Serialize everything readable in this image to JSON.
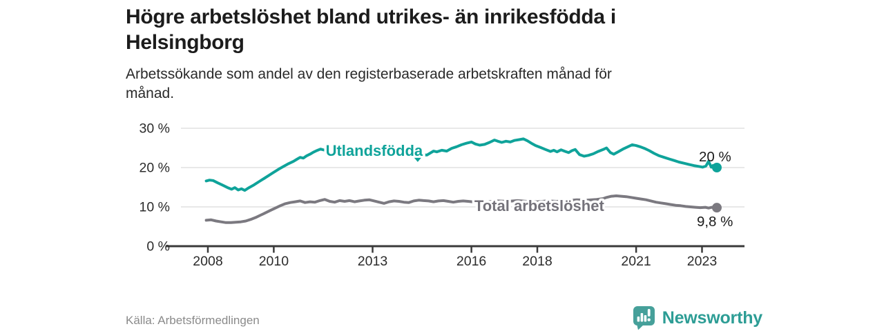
{
  "header": {
    "title_lines": [
      "Högre arbetslöshet bland utrikes- än inrikesfödda i",
      "Helsingborg"
    ],
    "subtitle_lines": [
      "Arbetssökande som andel av den registerbaserade arbetskraften månad för",
      "månad."
    ]
  },
  "footer": {
    "source": "Källa: Arbetsförmedlingen",
    "brand": "Newsworthy",
    "brand_color": "#2d9d95",
    "brand_icon": "speech-bubble-bar-chart-icon"
  },
  "chart_data": {
    "type": "line",
    "title": "Högre arbetslöshet bland utrikes- än inrikesfödda i Helsingborg",
    "subtitle": "Arbetssökande som andel av den registerbaserade arbetskraften månad för månad.",
    "source": "Källa: Arbetsförmedlingen",
    "unit": "%",
    "grid": true,
    "legend": "inline-labels",
    "xlim": [
      2007.8,
      2024.3
    ],
    "ylim": [
      0,
      32
    ],
    "x_ticks": [
      {
        "v": 2008,
        "label": "2008"
      },
      {
        "v": 2010,
        "label": "2010"
      },
      {
        "v": 2013,
        "label": "2013"
      },
      {
        "v": 2016,
        "label": "2016"
      },
      {
        "v": 2018,
        "label": "2018"
      },
      {
        "v": 2021,
        "label": "2021"
      },
      {
        "v": 2023,
        "label": "2023"
      }
    ],
    "y_ticks": [
      {
        "v": 0,
        "label": "0 %"
      },
      {
        "v": 10,
        "label": "10 %"
      },
      {
        "v": 20,
        "label": "20 %"
      },
      {
        "v": 30,
        "label": "30 %"
      }
    ],
    "grid_color": "#d9d9d9",
    "axis_color": "#3a3a3a",
    "tick_label_color": "#2b2b2b",
    "series": [
      {
        "name": "Utlandsfödda",
        "color": "#0fa39a",
        "label_color": "#0fa39a",
        "end_value": 20.0,
        "end_label": {
          "text": "20 %",
          "position": "above"
        },
        "inline_label": {
          "text": "Utlandsfödda",
          "x": 2013.05,
          "y": 24.4,
          "caret": {
            "x": 2014.37,
            "y": 22.3
          }
        },
        "points": [
          [
            2007.95,
            16.6
          ],
          [
            2008.05,
            16.8
          ],
          [
            2008.16,
            16.7
          ],
          [
            2008.3,
            16.1
          ],
          [
            2008.45,
            15.5
          ],
          [
            2008.6,
            14.9
          ],
          [
            2008.72,
            14.5
          ],
          [
            2008.82,
            14.9
          ],
          [
            2008.92,
            14.3
          ],
          [
            2009.02,
            14.6
          ],
          [
            2009.12,
            14.2
          ],
          [
            2009.25,
            14.9
          ],
          [
            2009.4,
            15.6
          ],
          [
            2009.55,
            16.4
          ],
          [
            2009.7,
            17.2
          ],
          [
            2009.85,
            18.0
          ],
          [
            2010.0,
            18.8
          ],
          [
            2010.15,
            19.6
          ],
          [
            2010.3,
            20.3
          ],
          [
            2010.45,
            21.0
          ],
          [
            2010.6,
            21.6
          ],
          [
            2010.7,
            22.1
          ],
          [
            2010.8,
            22.6
          ],
          [
            2010.9,
            22.4
          ],
          [
            2011.0,
            23.0
          ],
          [
            2011.1,
            23.4
          ],
          [
            2011.2,
            23.9
          ],
          [
            2011.3,
            24.3
          ],
          [
            2011.42,
            24.7
          ],
          [
            2011.6,
            24.3
          ],
          [
            2011.9,
            23.8
          ],
          [
            2012.2,
            23.9
          ],
          [
            2012.5,
            24.2
          ],
          [
            2012.8,
            23.9
          ],
          [
            2013.1,
            24.1
          ],
          [
            2013.4,
            24.3
          ],
          [
            2013.7,
            24.0
          ],
          [
            2014.0,
            23.7
          ],
          [
            2014.3,
            23.4
          ],
          [
            2014.5,
            23.2
          ],
          [
            2014.65,
            23.2
          ],
          [
            2014.75,
            23.7
          ],
          [
            2014.85,
            24.2
          ],
          [
            2014.95,
            24.0
          ],
          [
            2015.1,
            24.4
          ],
          [
            2015.25,
            24.2
          ],
          [
            2015.4,
            24.9
          ],
          [
            2015.55,
            25.3
          ],
          [
            2015.7,
            25.8
          ],
          [
            2015.85,
            26.2
          ],
          [
            2016.0,
            26.5
          ],
          [
            2016.12,
            26.0
          ],
          [
            2016.25,
            25.7
          ],
          [
            2016.4,
            25.9
          ],
          [
            2016.55,
            26.4
          ],
          [
            2016.7,
            27.0
          ],
          [
            2016.8,
            26.7
          ],
          [
            2016.92,
            26.4
          ],
          [
            2017.05,
            26.7
          ],
          [
            2017.18,
            26.5
          ],
          [
            2017.3,
            26.9
          ],
          [
            2017.45,
            27.1
          ],
          [
            2017.58,
            27.3
          ],
          [
            2017.7,
            26.8
          ],
          [
            2017.82,
            26.2
          ],
          [
            2017.95,
            25.6
          ],
          [
            2018.1,
            25.1
          ],
          [
            2018.25,
            24.6
          ],
          [
            2018.4,
            24.1
          ],
          [
            2018.5,
            24.4
          ],
          [
            2018.6,
            24.0
          ],
          [
            2018.72,
            24.5
          ],
          [
            2018.85,
            24.1
          ],
          [
            2018.95,
            23.8
          ],
          [
            2019.05,
            24.3
          ],
          [
            2019.15,
            24.6
          ],
          [
            2019.28,
            23.3
          ],
          [
            2019.42,
            22.9
          ],
          [
            2019.55,
            23.1
          ],
          [
            2019.7,
            23.5
          ],
          [
            2019.85,
            24.1
          ],
          [
            2020.0,
            24.6
          ],
          [
            2020.1,
            25.0
          ],
          [
            2020.22,
            23.8
          ],
          [
            2020.32,
            23.4
          ],
          [
            2020.45,
            24.0
          ],
          [
            2020.6,
            24.7
          ],
          [
            2020.75,
            25.3
          ],
          [
            2020.88,
            25.8
          ],
          [
            2021.0,
            25.6
          ],
          [
            2021.12,
            25.3
          ],
          [
            2021.25,
            24.9
          ],
          [
            2021.4,
            24.3
          ],
          [
            2021.55,
            23.6
          ],
          [
            2021.7,
            23.0
          ],
          [
            2021.85,
            22.6
          ],
          [
            2022.0,
            22.2
          ],
          [
            2022.15,
            21.8
          ],
          [
            2022.3,
            21.4
          ],
          [
            2022.45,
            21.1
          ],
          [
            2022.6,
            20.8
          ],
          [
            2022.75,
            20.5
          ],
          [
            2022.9,
            20.3
          ],
          [
            2023.02,
            20.1
          ],
          [
            2023.12,
            20.4
          ],
          [
            2023.2,
            21.6
          ],
          [
            2023.28,
            20.1
          ],
          [
            2023.33,
            20.5
          ],
          [
            2023.4,
            19.7
          ],
          [
            2023.45,
            20.0
          ]
        ]
      },
      {
        "name": "Total arbetslöshet",
        "color": "#7b7980",
        "label_color": "#74727a",
        "end_value": 9.8,
        "end_label": {
          "text": "9,8 %",
          "position": "below"
        },
        "inline_label": {
          "text": "Total arbetslöshet",
          "x": 2018.06,
          "y": 10.35
        },
        "points": [
          [
            2007.95,
            6.6
          ],
          [
            2008.1,
            6.7
          ],
          [
            2008.25,
            6.4
          ],
          [
            2008.4,
            6.2
          ],
          [
            2008.55,
            6.0
          ],
          [
            2008.7,
            6.0
          ],
          [
            2008.85,
            6.1
          ],
          [
            2009.0,
            6.2
          ],
          [
            2009.15,
            6.4
          ],
          [
            2009.3,
            6.8
          ],
          [
            2009.45,
            7.3
          ],
          [
            2009.6,
            7.9
          ],
          [
            2009.75,
            8.5
          ],
          [
            2009.9,
            9.1
          ],
          [
            2010.05,
            9.7
          ],
          [
            2010.2,
            10.3
          ],
          [
            2010.35,
            10.8
          ],
          [
            2010.5,
            11.1
          ],
          [
            2010.65,
            11.3
          ],
          [
            2010.8,
            11.5
          ],
          [
            2010.95,
            11.1
          ],
          [
            2011.1,
            11.3
          ],
          [
            2011.25,
            11.2
          ],
          [
            2011.4,
            11.6
          ],
          [
            2011.55,
            11.9
          ],
          [
            2011.7,
            11.4
          ],
          [
            2011.85,
            11.2
          ],
          [
            2012.0,
            11.6
          ],
          [
            2012.15,
            11.4
          ],
          [
            2012.3,
            11.6
          ],
          [
            2012.45,
            11.3
          ],
          [
            2012.6,
            11.5
          ],
          [
            2012.75,
            11.7
          ],
          [
            2012.9,
            11.8
          ],
          [
            2013.05,
            11.5
          ],
          [
            2013.2,
            11.2
          ],
          [
            2013.35,
            10.9
          ],
          [
            2013.5,
            11.3
          ],
          [
            2013.65,
            11.5
          ],
          [
            2013.8,
            11.4
          ],
          [
            2013.95,
            11.2
          ],
          [
            2014.1,
            11.1
          ],
          [
            2014.25,
            11.5
          ],
          [
            2014.4,
            11.7
          ],
          [
            2014.55,
            11.6
          ],
          [
            2014.7,
            11.5
          ],
          [
            2014.85,
            11.3
          ],
          [
            2015.0,
            11.5
          ],
          [
            2015.15,
            11.6
          ],
          [
            2015.3,
            11.4
          ],
          [
            2015.45,
            11.2
          ],
          [
            2015.6,
            11.4
          ],
          [
            2015.75,
            11.5
          ],
          [
            2015.9,
            11.4
          ],
          [
            2016.02,
            11.3
          ],
          [
            2016.2,
            11.4
          ],
          [
            2016.5,
            11.3
          ],
          [
            2016.8,
            11.5
          ],
          [
            2017.1,
            11.4
          ],
          [
            2017.4,
            11.6
          ],
          [
            2017.7,
            11.4
          ],
          [
            2018.0,
            11.3
          ],
          [
            2018.3,
            11.5
          ],
          [
            2018.6,
            11.4
          ],
          [
            2018.9,
            11.6
          ],
          [
            2019.2,
            11.8
          ],
          [
            2019.5,
            11.7
          ],
          [
            2019.8,
            11.9
          ],
          [
            2020.0,
            12.1
          ],
          [
            2020.1,
            12.4
          ],
          [
            2020.25,
            12.7
          ],
          [
            2020.4,
            12.8
          ],
          [
            2020.55,
            12.7
          ],
          [
            2020.7,
            12.6
          ],
          [
            2020.85,
            12.4
          ],
          [
            2021.0,
            12.2
          ],
          [
            2021.15,
            12.0
          ],
          [
            2021.3,
            11.8
          ],
          [
            2021.45,
            11.5
          ],
          [
            2021.6,
            11.2
          ],
          [
            2021.75,
            11.0
          ],
          [
            2021.9,
            10.8
          ],
          [
            2022.05,
            10.6
          ],
          [
            2022.2,
            10.4
          ],
          [
            2022.35,
            10.3
          ],
          [
            2022.5,
            10.1
          ],
          [
            2022.65,
            10.0
          ],
          [
            2022.8,
            9.9
          ],
          [
            2022.95,
            9.8
          ],
          [
            2023.1,
            9.9
          ],
          [
            2023.2,
            9.7
          ],
          [
            2023.3,
            9.9
          ],
          [
            2023.38,
            9.7
          ],
          [
            2023.45,
            9.8
          ]
        ]
      }
    ]
  }
}
